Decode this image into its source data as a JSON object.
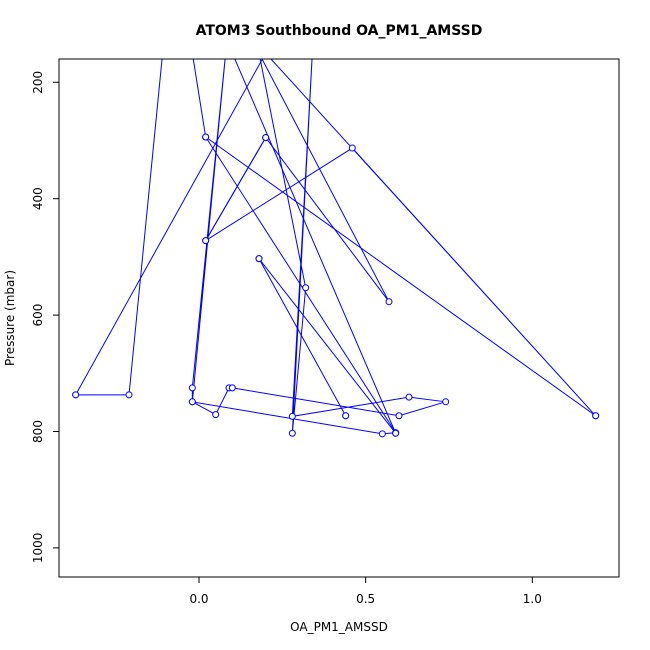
{
  "chart_data": {
    "type": "line",
    "title": "ATOM3 Southbound OA_PM1_AMSSD",
    "xlabel": "OA_PM1_AMSSD",
    "ylabel": "Pressure (mbar)",
    "xlim": [
      -0.42,
      1.26
    ],
    "ylim": [
      1050,
      160
    ],
    "y_reversed": true,
    "x_ticks": [
      0.0,
      0.5,
      1.0
    ],
    "x_tick_labels": [
      "0.0",
      "0.5",
      "1.0"
    ],
    "y_ticks": [
      200,
      400,
      600,
      800,
      1000
    ],
    "y_tick_labels": [
      "200",
      "400",
      "600",
      "800",
      "1000"
    ],
    "grid": false,
    "legend": "none",
    "series": [
      {
        "color": "#0000ff",
        "marker": "open-circle",
        "points": [
          {
            "x": -0.37,
            "y": 737
          },
          {
            "x": -0.21,
            "y": 737
          },
          {
            "x": -0.11,
            "y": 155
          },
          {
            "x": -0.02,
            "y": 150
          },
          {
            "x": 0.02,
            "y": 294
          },
          {
            "x": 0.59,
            "y": 802
          },
          {
            "x": 0.55,
            "y": 804
          },
          {
            "x": -0.02,
            "y": 749
          },
          {
            "x": -0.02,
            "y": 725
          },
          {
            "x": 0.08,
            "y": 150
          },
          {
            "x": -0.02,
            "y": 749
          },
          {
            "x": 0.05,
            "y": 771
          },
          {
            "x": 0.09,
            "y": 725
          },
          {
            "x": 0.1,
            "y": 725
          },
          {
            "x": 0.6,
            "y": 773
          },
          {
            "x": 0.74,
            "y": 749
          },
          {
            "x": 0.63,
            "y": 741
          },
          {
            "x": 0.28,
            "y": 774
          },
          {
            "x": 0.34,
            "y": 150
          },
          {
            "x": 0.28,
            "y": 803
          },
          {
            "x": 0.32,
            "y": 553
          },
          {
            "x": 0.18,
            "y": 150
          },
          {
            "x": 0.57,
            "y": 577
          },
          {
            "x": 0.2,
            "y": 295
          },
          {
            "x": 0.02,
            "y": 472
          },
          {
            "x": 0.46,
            "y": 313
          },
          {
            "x": 1.19,
            "y": 773
          },
          {
            "x": 0.2,
            "y": 150
          },
          {
            "x": -0.37,
            "y": 737
          }
        ]
      },
      {
        "color": "#0000ff",
        "marker": "open-circle",
        "points": [
          {
            "x": 0.18,
            "y": 503
          },
          {
            "x": 0.44,
            "y": 773
          },
          {
            "x": 0.44,
            "y": 773
          }
        ]
      },
      {
        "color": "#0000ff",
        "marker": "open-circle",
        "points": [
          {
            "x": 0.1,
            "y": 150
          },
          {
            "x": 0.59,
            "y": 803
          }
        ]
      },
      {
        "color": "#0000ff",
        "marker": "open-circle",
        "points": [
          {
            "x": 0.02,
            "y": 294
          },
          {
            "x": 1.19,
            "y": 773
          }
        ]
      },
      {
        "color": "#0000ff",
        "marker": "open-circle",
        "points": [
          {
            "x": 0.02,
            "y": 472
          },
          {
            "x": 0.2,
            "y": 295
          }
        ]
      },
      {
        "color": "#0000ff",
        "marker": "open-circle",
        "points": [
          {
            "x": 0.18,
            "y": 503
          },
          {
            "x": 0.59,
            "y": 803
          }
        ]
      }
    ]
  }
}
